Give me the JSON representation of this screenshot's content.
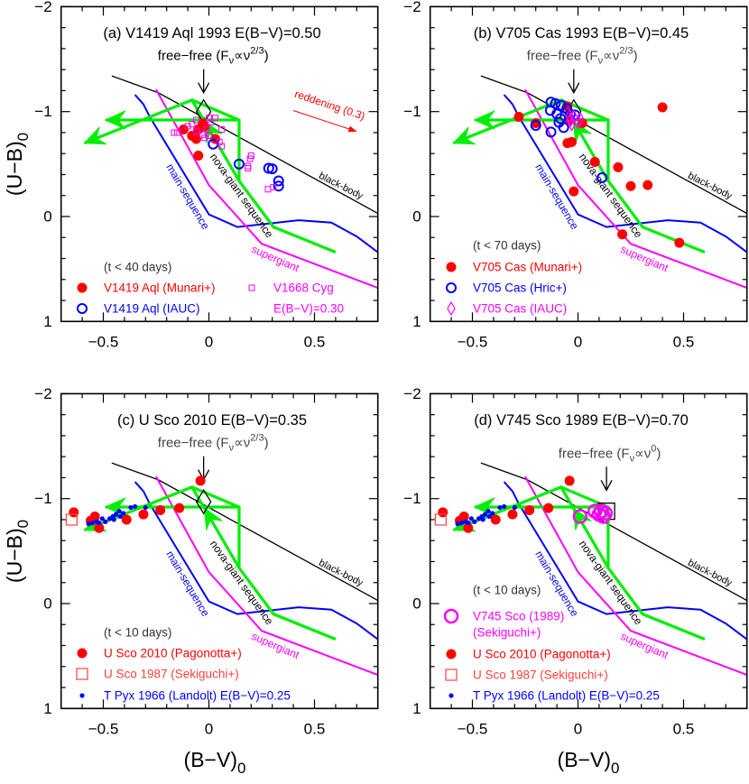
{
  "chart_data": {
    "type": "scatter",
    "xlabel": {
      "text": "(B−V)",
      "sub": "0"
    },
    "ylabel": {
      "text": "(U−B)",
      "sub": "0"
    },
    "xlim": [
      -0.7,
      0.8
    ],
    "ylim": [
      1,
      -2
    ],
    "y_inverted": true,
    "x_ticks": [
      {
        "value": -0.5,
        "label": "−0.5"
      },
      {
        "value": 0,
        "label": "0"
      },
      {
        "value": 0.5,
        "label": "0.5"
      }
    ],
    "y_ticks": [
      {
        "value": -2,
        "label": "−2"
      },
      {
        "value": -1,
        "label": "−1"
      },
      {
        "value": 0,
        "label": "0"
      },
      {
        "value": 1,
        "label": "1"
      }
    ],
    "colors": {
      "red": "#ff0000",
      "blue": "#0000ff",
      "magenta": "#ff00ff",
      "green": "#00ee00",
      "black": "#000000",
      "light_red": "#ff4040"
    },
    "curves": [
      {
        "name": "black-body",
        "color": "#000000",
        "points": [
          [
            -0.46,
            -1.34
          ],
          [
            -0.24,
            -1.18
          ],
          [
            0.8,
            -0.03
          ]
        ]
      },
      {
        "name": "main-sequence",
        "color": "#0000ff",
        "points": [
          [
            -0.35,
            -1.16
          ],
          [
            -0.31,
            -1.07
          ],
          [
            -0.28,
            -0.95
          ],
          [
            0.0,
            -0.02
          ],
          [
            0.135,
            0.1
          ],
          [
            0.425,
            0.035
          ],
          [
            0.58,
            0.058
          ],
          [
            0.7,
            0.19
          ],
          [
            0.8,
            0.34
          ]
        ]
      },
      {
        "name": "supergiant",
        "color": "#ff00ff",
        "points": [
          [
            -0.25,
            -1.21
          ],
          [
            0.0,
            -0.3
          ],
          [
            0.25,
            0.26
          ],
          [
            0.8,
            0.68
          ]
        ]
      },
      {
        "name": "nova-giant sequence",
        "color": "#00ee00",
        "points": [
          [
            -0.59,
            -0.7
          ],
          [
            -0.08,
            -1.11
          ],
          [
            0.143,
            -0.92
          ],
          [
            0.143,
            -0.34
          ],
          [
            0.306,
            0.1
          ],
          [
            0.6,
            0.34
          ]
        ],
        "branches": [
          [
            [
              0.143,
              -0.92
            ],
            [
              -0.49,
              -0.92
            ]
          ],
          [
            [
              0.143,
              -0.34
            ],
            [
              -0.08,
              -1.11
            ]
          ]
        ]
      }
    ],
    "panels": [
      {
        "title": "(a) V1419 Aql 1993 E(B−V)=0.50",
        "free_free": {
          "prefix": "free−free (F",
          "sub": "ν",
          "mid": "∝ν",
          "sup": "2/3",
          "suffix": ")",
          "bv": -0.025
        },
        "ff_marker": {
          "shape": "diamond",
          "bv": -0.025,
          "ub": -1.0
        },
        "reddening": {
          "label": "reddening (0.3)",
          "from": [
            0.4,
            -1.01
          ],
          "to": [
            0.7,
            -0.81
          ]
        },
        "legend_header": "(t < 40 days)",
        "series": [
          {
            "name": "V1419 Aql (Munari+)",
            "marker": "filled-circle",
            "color": "#ff0000",
            "points": [
              [
                -0.12,
                -0.83
              ],
              [
                -0.08,
                -0.77
              ],
              [
                -0.06,
                -0.74
              ],
              [
                -0.05,
                -0.83
              ],
              [
                -0.03,
                -0.885
              ],
              [
                -0.02,
                -0.86
              ],
              [
                0.03,
                -0.74
              ],
              [
                -0.05,
                -0.58
              ]
            ]
          },
          {
            "name": "V1419 Aql (IAUC)",
            "marker": "open-circle",
            "color": "#0000ff",
            "points": [
              [
                0.02,
                -0.69
              ],
              [
                0.143,
                -0.5
              ],
              [
                0.283,
                -0.46
              ],
              [
                0.3,
                -0.455
              ],
              [
                0.33,
                -0.34
              ],
              [
                0.33,
                -0.29
              ]
            ]
          },
          {
            "name": "V1668 Cyg",
            "marker": "open-square",
            "color": "#ff00ff",
            "points": [
              [
                -0.165,
                -0.8
              ],
              [
                -0.15,
                -0.8
              ],
              [
                -0.1,
                -0.86
              ],
              [
                -0.08,
                -0.88
              ],
              [
                -0.06,
                -0.92
              ],
              [
                0.0,
                -0.94
              ],
              [
                0.03,
                -0.94
              ],
              [
                0.01,
                -0.9
              ],
              [
                -0.01,
                -0.83
              ],
              [
                0.0,
                -0.77
              ],
              [
                -0.03,
                -0.78
              ],
              [
                0.06,
                -0.83
              ],
              [
                0.05,
                -0.71
              ],
              [
                -0.02,
                -0.75
              ],
              [
                -0.06,
                -0.81
              ],
              [
                0.06,
                -0.67
              ],
              [
                0.2,
                -0.58
              ],
              [
                0.195,
                -0.55
              ],
              [
                0.185,
                -0.46
              ],
              [
                0.185,
                -0.48
              ],
              [
                0.28,
                -0.26
              ],
              [
                0.305,
                -0.28
              ]
            ]
          }
        ],
        "legend": [
          {
            "label": "V1419 Aql (Munari+)",
            "marker": "filled-circle",
            "color": "#ff0000"
          },
          {
            "label": "V1419 Aql (IAUC)",
            "marker": "open-circle",
            "color": "#0000ff"
          },
          {
            "label": "V1668 Cyg",
            "marker": "open-square",
            "color": "#ff00ff"
          },
          {
            "label": "E(B−V)=0.30",
            "marker": "none",
            "color": "#ff00ff"
          }
        ]
      },
      {
        "title": "(b) V705 Cas 1993 E(B−V)=0.45",
        "free_free": {
          "prefix": "free−free (F",
          "sub": "ν",
          "mid": "∝ν",
          "sup": "2/3",
          "suffix": ")",
          "bv": -0.02
        },
        "ff_marker": {
          "shape": "diamond",
          "bv": -0.02,
          "ub": -1.0
        },
        "legend_header": "(t < 70 days)",
        "series": [
          {
            "name": "V705 Cas (Munari+)",
            "marker": "filled-circle",
            "color": "#ff0000",
            "points": [
              [
                -0.28,
                -0.95
              ],
              [
                -0.2,
                -0.89
              ],
              [
                -0.05,
                -1.05
              ],
              [
                0.02,
                -0.89
              ],
              [
                -0.03,
                -0.71
              ],
              [
                -0.05,
                -0.7
              ],
              [
                0.08,
                -0.52
              ],
              [
                0.19,
                -0.47
              ],
              [
                0.4,
                -1.04
              ],
              [
                -0.04,
                -0.92
              ],
              [
                -0.02,
                -0.24
              ],
              [
                0.25,
                -0.29
              ],
              [
                0.33,
                -0.3
              ],
              [
                0.21,
                0.17
              ],
              [
                0.48,
                0.25
              ]
            ]
          },
          {
            "name": "V705 Cas (Hric+)",
            "marker": "open-circle",
            "color": "#0000ff",
            "points": [
              [
                -0.128,
                -1.09
              ],
              [
                -0.107,
                -1.077
              ],
              [
                -0.079,
                -1.06
              ],
              [
                -0.131,
                -1.011
              ],
              [
                -0.1,
                -0.977
              ],
              [
                -0.083,
                -0.934
              ],
              [
                -0.068,
                -0.848
              ],
              [
                -0.128,
                -0.805
              ],
              [
                -0.2,
                -0.868
              ],
              [
                -0.053,
                -1.03
              ],
              [
                -0.036,
                -0.977
              ],
              [
                -0.014,
                -0.968
              ],
              [
                -0.09,
                -0.897
              ],
              [
                0.114,
                -0.37
              ]
            ]
          },
          {
            "name": "V705 Cas (IAUC)",
            "marker": "open-diamond",
            "color": "#ff00ff",
            "points": [
              [
                -0.035,
                -0.92
              ],
              [
                -0.02,
                -0.95
              ],
              [
                0.0,
                -0.9
              ],
              [
                -0.03,
                -0.88
              ],
              [
                0.01,
                -0.93
              ],
              [
                -0.04,
                -0.96
              ]
            ]
          }
        ],
        "legend": [
          {
            "label": "V705 Cas (Munari+)",
            "marker": "filled-circle",
            "color": "#ff0000"
          },
          {
            "label": "V705 Cas (Hric+)",
            "marker": "open-circle",
            "color": "#0000ff"
          },
          {
            "label": "V705 Cas (IAUC)",
            "marker": "open-diamond",
            "color": "#ff00ff"
          }
        ]
      },
      {
        "title": "(c) U Sco 2010 E(B−V)=0.35",
        "free_free": {
          "prefix": "free−free (F",
          "sub": "ν",
          "mid": "∝ν",
          "sup": "2/3",
          "suffix": ")",
          "bv": -0.025
        },
        "ff_marker": {
          "shape": "diamond",
          "bv": -0.025,
          "ub": -0.97
        },
        "legend_header": "(t < 10 days)",
        "series": [
          {
            "name": "U Sco 2010 (Pagonotta+)",
            "marker": "filled-circle",
            "color": "#ff0000",
            "points": [
              [
                -0.64,
                -0.87
              ],
              [
                -0.56,
                -0.79
              ],
              [
                -0.54,
                -0.83
              ],
              [
                -0.52,
                -0.72
              ],
              [
                -0.39,
                -0.8
              ],
              [
                -0.31,
                -0.85
              ],
              [
                -0.23,
                -0.89
              ],
              [
                -0.14,
                -0.91
              ],
              [
                -0.04,
                -1.17
              ]
            ]
          },
          {
            "name": "U Sco 1987 (Sekiguchi+)",
            "marker": "open-square-large",
            "color": "#ff4040",
            "points": [
              [
                -0.65,
                -0.8
              ]
            ]
          },
          {
            "name": "T Pyx 1966 (Landolt) E(B−V)=0.25",
            "marker": "dot",
            "color": "#0000ff",
            "points": [
              [
                -0.57,
                -0.76
              ],
              [
                -0.55,
                -0.77
              ],
              [
                -0.53,
                -0.78
              ],
              [
                -0.52,
                -0.77
              ],
              [
                -0.505,
                -0.81
              ],
              [
                -0.49,
                -0.78
              ],
              [
                -0.47,
                -0.81
              ],
              [
                -0.455,
                -0.83
              ],
              [
                -0.45,
                -0.8
              ],
              [
                -0.44,
                -0.85
              ],
              [
                -0.425,
                -0.88
              ],
              [
                -0.42,
                -0.83
              ],
              [
                -0.405,
                -0.86
              ],
              [
                -0.37,
                -0.915
              ],
              [
                -0.35,
                -0.925
              ],
              [
                -0.3,
                -0.915
              ]
            ]
          }
        ],
        "legend": [
          {
            "label": "U Sco 2010 (Pagonotta+)",
            "marker": "filled-circle",
            "color": "#ff0000"
          },
          {
            "label": "U Sco 1987 (Sekiguchi+)",
            "marker": "open-square-large",
            "color": "#ff4040"
          },
          {
            "label": "T Pyx 1966 (Landolt) E(B−V)=0.25",
            "marker": "dot",
            "color": "#0000ff"
          }
        ]
      },
      {
        "title": "(d) V745 Sco 1989 E(B−V)=0.70",
        "free_free": {
          "prefix": "free−free (F",
          "sub": "ν",
          "mid": "∝ν",
          "sup": "0",
          "suffix": ")",
          "bv": 0.135
        },
        "ff_marker": {
          "shape": "square",
          "bv": 0.135,
          "ub": -0.88
        },
        "legend_header": "(t < 10 days)",
        "series": [
          {
            "name": "V745 Sco (1989) (Sekiguchi+)",
            "marker": "open-circle-large",
            "color": "#ff00ff",
            "points": [
              [
                0.01,
                -0.83
              ],
              [
                0.08,
                -0.88
              ],
              [
                0.1,
                -0.85
              ],
              [
                0.11,
                -0.88
              ],
              [
                0.13,
                -0.86
              ],
              [
                0.12,
                -0.83
              ]
            ]
          },
          {
            "name": "U Sco 2010 (Pagonotta+)",
            "marker": "filled-circle",
            "color": "#ff0000",
            "points": [
              [
                -0.64,
                -0.87
              ],
              [
                -0.56,
                -0.79
              ],
              [
                -0.54,
                -0.83
              ],
              [
                -0.52,
                -0.72
              ],
              [
                -0.39,
                -0.8
              ],
              [
                -0.31,
                -0.85
              ],
              [
                -0.23,
                -0.89
              ],
              [
                -0.14,
                -0.91
              ],
              [
                -0.04,
                -1.17
              ]
            ]
          },
          {
            "name": "U Sco 1987 (Sekiguchi+)",
            "marker": "open-square-large",
            "color": "#ff4040",
            "points": [
              [
                -0.65,
                -0.8
              ]
            ]
          },
          {
            "name": "T Pyx 1966 (Landolt) E(B−V)=0.25",
            "marker": "dot",
            "color": "#0000ff",
            "points": [
              [
                -0.57,
                -0.76
              ],
              [
                -0.55,
                -0.77
              ],
              [
                -0.53,
                -0.78
              ],
              [
                -0.52,
                -0.77
              ],
              [
                -0.505,
                -0.81
              ],
              [
                -0.49,
                -0.78
              ],
              [
                -0.47,
                -0.81
              ],
              [
                -0.455,
                -0.83
              ],
              [
                -0.45,
                -0.8
              ],
              [
                -0.44,
                -0.85
              ],
              [
                -0.425,
                -0.88
              ],
              [
                -0.42,
                -0.83
              ],
              [
                -0.405,
                -0.86
              ],
              [
                -0.37,
                -0.915
              ],
              [
                -0.35,
                -0.925
              ],
              [
                -0.3,
                -0.915
              ]
            ]
          }
        ],
        "legend": [
          {
            "label": "V745 Sco (1989)",
            "label2": "(Sekiguchi+)",
            "marker": "open-circle-large",
            "color": "#ff00ff"
          },
          {
            "label": "U Sco 2010 (Pagonotta+)",
            "marker": "filled-circle",
            "color": "#ff0000"
          },
          {
            "label": "U Sco 1987 (Sekiguchi+)",
            "marker": "open-square-large",
            "color": "#ff4040"
          },
          {
            "label": "T Pyx 1966 (Landolt) E(B−V)=0.25",
            "marker": "dot",
            "color": "#0000ff"
          }
        ]
      }
    ]
  }
}
